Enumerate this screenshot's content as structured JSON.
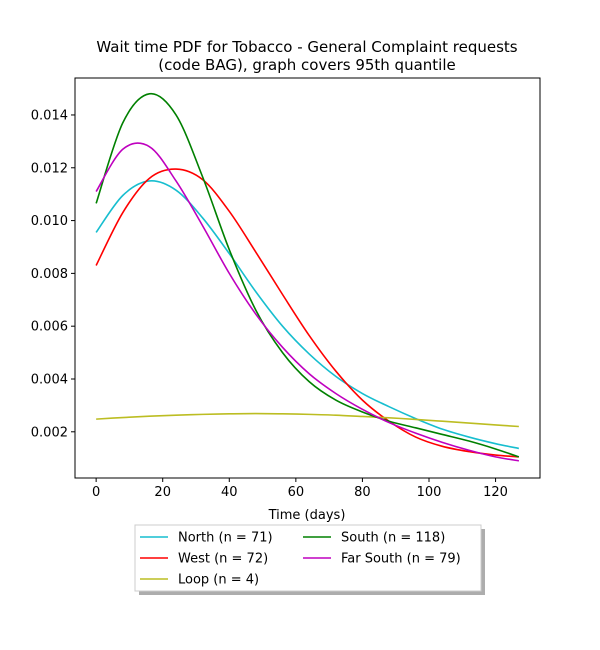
{
  "chart_data": {
    "type": "line",
    "title_line1": "Wait time PDF for Tobacco - General Complaint  requests",
    "title_line2": "(code BAG), graph covers 95th quantile",
    "xlabel": "Time (days)",
    "ylabel": "",
    "xlim": [
      -6.35,
      133.35
    ],
    "ylim": [
      0.00025,
      0.0154
    ],
    "xticks": [
      0,
      20,
      40,
      60,
      80,
      100,
      120
    ],
    "yticks": [
      0.002,
      0.004,
      0.006,
      0.008,
      0.01,
      0.012,
      0.014
    ],
    "ytick_labels": [
      "0.002",
      "0.004",
      "0.006",
      "0.008",
      "0.010",
      "0.012",
      "0.014"
    ],
    "grid": false,
    "legend": "below",
    "series": [
      {
        "name": "North (n = 71)",
        "color": "#17becf",
        "x": [
          0,
          8,
          16,
          24,
          32,
          40,
          48,
          56,
          64,
          72,
          80,
          88,
          96,
          104,
          112,
          120,
          127
        ],
        "y": [
          0.00955,
          0.01095,
          0.0115,
          0.01115,
          0.0101,
          0.00875,
          0.0073,
          0.006,
          0.00495,
          0.0041,
          0.00345,
          0.00295,
          0.0025,
          0.0021,
          0.0018,
          0.00155,
          0.00137
        ]
      },
      {
        "name": "West (n = 72)",
        "color": "#ff0000",
        "x": [
          0,
          8,
          16,
          24,
          32,
          40,
          48,
          56,
          64,
          72,
          80,
          88,
          96,
          104,
          112,
          120,
          127
        ],
        "y": [
          0.0083,
          0.0103,
          0.0116,
          0.01195,
          0.01155,
          0.01035,
          0.0088,
          0.0072,
          0.00565,
          0.0043,
          0.0032,
          0.0024,
          0.0018,
          0.00145,
          0.00125,
          0.00112,
          0.00105
        ]
      },
      {
        "name": "Loop (n = 4)",
        "color": "#bcbd22",
        "x": [
          0,
          8,
          16,
          24,
          32,
          40,
          48,
          56,
          64,
          72,
          80,
          88,
          96,
          104,
          112,
          120,
          127
        ],
        "y": [
          0.00248,
          0.00254,
          0.00259,
          0.00263,
          0.00266,
          0.00268,
          0.00269,
          0.00268,
          0.00266,
          0.00263,
          0.00258,
          0.00253,
          0.00247,
          0.0024,
          0.00233,
          0.00226,
          0.0022
        ]
      },
      {
        "name": "South (n = 118)",
        "color": "#008000",
        "x": [
          0,
          8,
          16,
          24,
          32,
          40,
          48,
          56,
          64,
          72,
          80,
          88,
          96,
          104,
          112,
          120,
          127
        ],
        "y": [
          0.01065,
          0.0137,
          0.0148,
          0.014,
          0.01165,
          0.0089,
          0.0066,
          0.005,
          0.0039,
          0.0032,
          0.00275,
          0.0024,
          0.00215,
          0.0019,
          0.00165,
          0.00135,
          0.00105
        ]
      },
      {
        "name": "Far South (n = 79)",
        "color": "#bf00bf",
        "x": [
          0,
          8,
          16,
          24,
          32,
          40,
          48,
          56,
          64,
          72,
          80,
          88,
          96,
          104,
          112,
          120,
          127
        ],
        "y": [
          0.0111,
          0.0127,
          0.0128,
          0.0115,
          0.0098,
          0.008,
          0.00645,
          0.0052,
          0.0042,
          0.00345,
          0.00285,
          0.00235,
          0.00195,
          0.0016,
          0.0013,
          0.00105,
          0.0009
        ]
      }
    ]
  }
}
